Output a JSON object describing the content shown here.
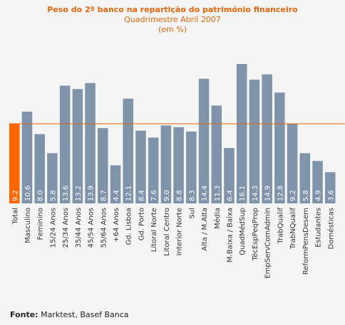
{
  "chart_data": {
    "type": "bar",
    "title": "Peso do 2º banco na repartição do património financeiro",
    "subtitle": "Quadrimestre Abril 2007",
    "unit_note": "(em %)",
    "categories": [
      "Total",
      "Masculino",
      "Feminino",
      "15/24 Anos",
      "25/34 Anos",
      "35/44 Anos",
      "45/54 Anos",
      "55/64 Anos",
      "+64 Anos",
      "Gd. Lisboa",
      "Gd. Porto",
      "Litoral Norte",
      "Litoral Centro",
      "Interior Norte",
      "Sul",
      "Alta / M.Alta",
      "Média",
      "M.Baixa / Baixa",
      "QuadMédSup",
      "TécEspPeqProp",
      "EmpServComAdmin",
      "TrabQualif",
      "TrabNQualif",
      "ReformPensDesem",
      "Estudantes",
      "Domésticas"
    ],
    "value_labels": [
      "9.2",
      "10.6",
      "8.0",
      "5.8",
      "13.6",
      "13.2",
      "13.9",
      "8.7",
      "4.4",
      "12.1",
      "8.4",
      "7.6",
      "9.0",
      "8.8",
      "8.3",
      "14.4",
      "11.3",
      "6.4",
      "16.1",
      "14.3",
      "14.9",
      "12.8",
      "9.2",
      "5.8",
      "4.9",
      "3.6"
    ],
    "values": [
      9.2,
      10.6,
      8.0,
      5.8,
      13.6,
      13.2,
      13.9,
      8.7,
      4.4,
      12.1,
      8.4,
      7.6,
      9.0,
      8.8,
      8.3,
      14.4,
      11.3,
      6.4,
      16.1,
      14.3,
      14.9,
      12.8,
      9.2,
      5.8,
      4.9,
      3.6
    ],
    "reference_line": 9.2,
    "highlight_index": 0,
    "ylim": [
      0,
      16.1
    ],
    "colors": {
      "bar": "#7f93ab",
      "highlight": "#ff6600",
      "reference": "#e8650a",
      "title": "#e8650a"
    }
  },
  "footer": {
    "source_label": "Fonte:",
    "source_text": " Marktest, Basef Banca"
  }
}
